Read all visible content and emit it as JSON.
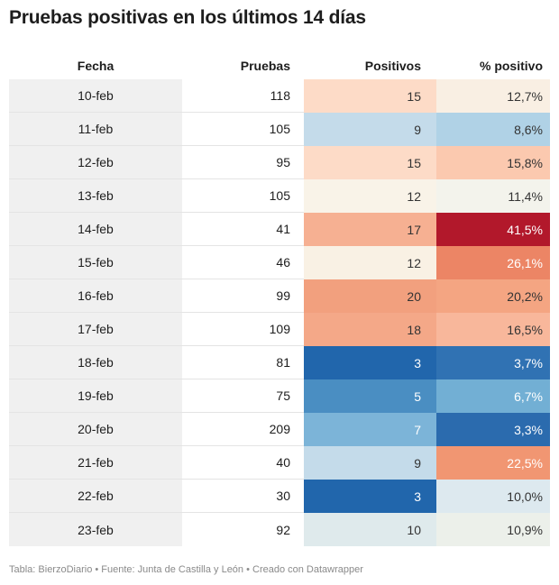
{
  "title": "Pruebas positivas en los últimos 14 días",
  "headers": [
    "Fecha",
    "Pruebas",
    "Positivos",
    "% positivo"
  ],
  "chart_data": {
    "type": "table",
    "columns": [
      "Fecha",
      "Pruebas",
      "Positivos",
      "% positivo"
    ],
    "rows": [
      {
        "fecha": "10-feb",
        "pruebas": "118",
        "positivos": "15",
        "pct": "12,7%",
        "pos_color": "#fddbc7",
        "pct_color": "#f9efe3",
        "pos_text": "#333333",
        "pct_text": "#333333"
      },
      {
        "fecha": "11-feb",
        "pruebas": "105",
        "positivos": "9",
        "pct": "8,6%",
        "pos_color": "#c4dbea",
        "pct_color": "#b0d2e6",
        "pos_text": "#333333",
        "pct_text": "#333333"
      },
      {
        "fecha": "12-feb",
        "pruebas": "95",
        "positivos": "15",
        "pct": "15,8%",
        "pos_color": "#fddbc7",
        "pct_color": "#fbc9af",
        "pos_text": "#333333",
        "pct_text": "#333333"
      },
      {
        "fecha": "13-feb",
        "pruebas": "105",
        "positivos": "12",
        "pct": "11,4%",
        "pos_color": "#f9f3e8",
        "pct_color": "#f3f3ec",
        "pos_text": "#333333",
        "pct_text": "#333333"
      },
      {
        "fecha": "14-feb",
        "pruebas": "41",
        "positivos": "17",
        "pct": "41,5%",
        "pos_color": "#f6b092",
        "pct_color": "#b2182b",
        "pos_text": "#333333",
        "pct_text": "#ffffff"
      },
      {
        "fecha": "15-feb",
        "pruebas": "46",
        "positivos": "12",
        "pct": "26,1%",
        "pos_color": "#f9f1e4",
        "pct_color": "#ec8565",
        "pos_text": "#333333",
        "pct_text": "#ffffff"
      },
      {
        "fecha": "16-feb",
        "pruebas": "99",
        "positivos": "20",
        "pct": "20,2%",
        "pos_color": "#f2a07e",
        "pct_color": "#f4a582",
        "pos_text": "#333333",
        "pct_text": "#333333"
      },
      {
        "fecha": "17-feb",
        "pruebas": "109",
        "positivos": "18",
        "pct": "16,5%",
        "pos_color": "#f4a888",
        "pct_color": "#f8b79b",
        "pos_text": "#333333",
        "pct_text": "#333333"
      },
      {
        "fecha": "18-feb",
        "pruebas": "81",
        "positivos": "3",
        "pct": "3,7%",
        "pos_color": "#2166ac",
        "pct_color": "#3072b3",
        "pos_text": "#ffffff",
        "pct_text": "#ffffff"
      },
      {
        "fecha": "19-feb",
        "pruebas": "75",
        "positivos": "5",
        "pct": "6,7%",
        "pos_color": "#4a8ec2",
        "pct_color": "#72afd4",
        "pos_text": "#ffffff",
        "pct_text": "#ffffff"
      },
      {
        "fecha": "20-feb",
        "pruebas": "209",
        "positivos": "7",
        "pct": "3,3%",
        "pos_color": "#7cb4d8",
        "pct_color": "#2b6bae",
        "pos_text": "#ffffff",
        "pct_text": "#ffffff"
      },
      {
        "fecha": "21-feb",
        "pruebas": "40",
        "positivos": "9",
        "pct": "22,5%",
        "pos_color": "#c4dbea",
        "pct_color": "#f19672",
        "pos_text": "#333333",
        "pct_text": "#ffffff"
      },
      {
        "fecha": "22-feb",
        "pruebas": "30",
        "positivos": "3",
        "pct": "10,0%",
        "pos_color": "#2166ac",
        "pct_color": "#dde9ef",
        "pos_text": "#ffffff",
        "pct_text": "#333333"
      },
      {
        "fecha": "23-feb",
        "pruebas": "92",
        "positivos": "10",
        "pct": "10,9%",
        "pos_color": "#dfeaec",
        "pct_color": "#ecf0ea",
        "pos_text": "#333333",
        "pct_text": "#333333"
      }
    ]
  },
  "footer": "Tabla: BierzoDiario • Fuente: Junta de Castilla y León • Creado con Datawrapper"
}
